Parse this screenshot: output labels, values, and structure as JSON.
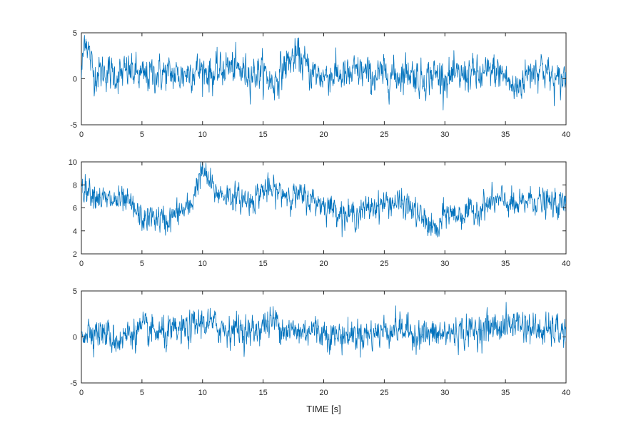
{
  "colors": {
    "trace": "#0072BD",
    "axes": "#262626",
    "background": "#ffffff"
  },
  "chart_data": [
    {
      "type": "line",
      "title": "",
      "xlabel": "",
      "ylabel": "",
      "xlim": [
        0,
        40
      ],
      "ylim": [
        -5,
        5
      ],
      "xticks": [
        "0",
        "5",
        "10",
        "15",
        "20",
        "25",
        "30",
        "35",
        "40"
      ],
      "yticks": [
        "-5",
        "0",
        "5"
      ],
      "grid": false,
      "series": [
        {
          "x": [
            0,
            0.3,
            1,
            2,
            3,
            4,
            5,
            6,
            7,
            8,
            9,
            10,
            11,
            12,
            13,
            14,
            15,
            15.8,
            17,
            17.9,
            19,
            20,
            21,
            22,
            23,
            24,
            25,
            26,
            27,
            28,
            29,
            30,
            31,
            32,
            33,
            34,
            35,
            35.7,
            37,
            38,
            39.2,
            40
          ],
          "y": [
            0.2,
            5.0,
            0.5,
            0.8,
            0.3,
            0.9,
            0.2,
            0.5,
            0.6,
            0.3,
            0.8,
            1.0,
            0.4,
            1.4,
            0.9,
            0.6,
            0.8,
            -0.6,
            1.8,
            2.5,
            0.6,
            0.3,
            0.5,
            0.2,
            0.9,
            0.1,
            0.5,
            0.3,
            0.9,
            -0.1,
            0.5,
            0.2,
            0.1,
            0.6,
            0.2,
            0.9,
            0.3,
            -1.3,
            0.8,
            1.3,
            -0.5,
            0.3
          ]
        }
      ]
    },
    {
      "type": "line",
      "title": "",
      "xlabel": "",
      "ylabel": "",
      "xlim": [
        0,
        40
      ],
      "ylim": [
        2,
        10
      ],
      "xticks": [
        "0",
        "5",
        "10",
        "15",
        "20",
        "25",
        "30",
        "35",
        "40"
      ],
      "yticks": [
        "2",
        "4",
        "6",
        "8",
        "10"
      ],
      "grid": false,
      "series": [
        {
          "x": [
            0,
            1,
            2,
            3,
            4,
            5,
            6,
            7,
            8,
            9,
            9.5,
            10,
            10.5,
            11,
            12,
            13,
            14,
            15,
            16,
            17,
            18,
            19,
            20,
            21,
            22,
            23,
            24,
            25,
            26,
            27,
            28,
            29,
            29.5,
            30,
            31,
            32,
            33,
            34,
            35,
            36,
            37,
            38,
            39,
            40
          ],
          "y": [
            8.0,
            7.3,
            6.6,
            6.6,
            6.3,
            5.0,
            5.2,
            4.8,
            5.6,
            6.0,
            8.0,
            9.2,
            8.4,
            7.4,
            7.1,
            6.8,
            6.6,
            7.6,
            7.4,
            7.2,
            7.0,
            6.7,
            6.3,
            5.9,
            5.3,
            5.6,
            6.1,
            6.4,
            6.5,
            6.1,
            5.2,
            4.2,
            4.0,
            5.6,
            5.4,
            5.5,
            6.0,
            6.5,
            6.6,
            6.0,
            6.8,
            6.5,
            6.3,
            6.3
          ]
        }
      ]
    },
    {
      "type": "line",
      "title": "",
      "xlabel": "TIME [s]",
      "ylabel": "",
      "xlim": [
        0,
        40
      ],
      "ylim": [
        -5,
        5
      ],
      "xticks": [
        "0",
        "5",
        "10",
        "15",
        "20",
        "25",
        "30",
        "35",
        "40"
      ],
      "yticks": [
        "-5",
        "0",
        "5"
      ],
      "grid": false,
      "series": [
        {
          "x": [
            0,
            1,
            2,
            3,
            4,
            5,
            6,
            7,
            8,
            9,
            10,
            11,
            12,
            13,
            14,
            15,
            16,
            17,
            18,
            19,
            20,
            21,
            22,
            23,
            24,
            25,
            26,
            27,
            28,
            29,
            30,
            31,
            32,
            33,
            34,
            35,
            36,
            37,
            38,
            39,
            40
          ],
          "y": [
            0.5,
            0.8,
            0.3,
            -0.4,
            0.4,
            0.8,
            0.5,
            0.2,
            0.6,
            0.9,
            1.7,
            1.2,
            0.8,
            1.0,
            0.4,
            1.3,
            1.8,
            0.7,
            0.5,
            0.9,
            0.5,
            0.1,
            0.2,
            0.4,
            0.3,
            0.7,
            1.0,
            0.6,
            0.3,
            0.2,
            0.3,
            0.5,
            0.6,
            0.9,
            1.1,
            1.2,
            1.6,
            1.0,
            0.6,
            0.7,
            0.5
          ]
        }
      ]
    }
  ]
}
